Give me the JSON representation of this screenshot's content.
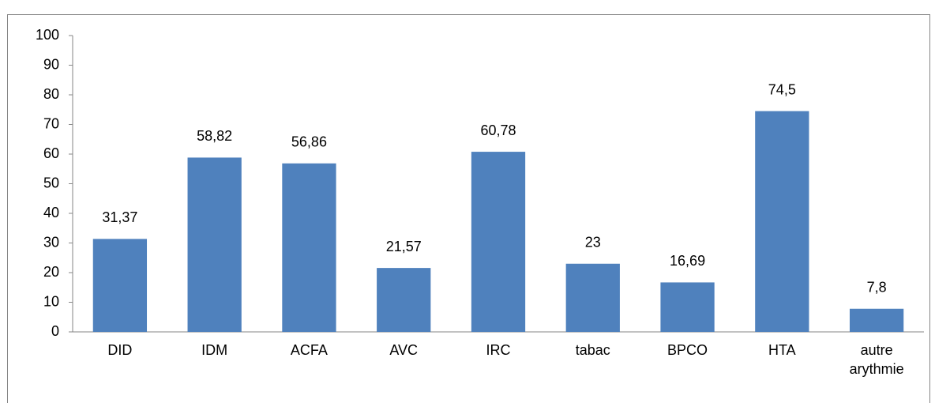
{
  "chart_data": {
    "type": "bar",
    "categories": [
      "DID",
      "IDM",
      "ACFA",
      "AVC",
      "IRC",
      "tabac",
      "BPCO",
      "HTA",
      "autre arythmie"
    ],
    "values": [
      31.37,
      58.82,
      56.86,
      21.57,
      60.78,
      23,
      16.69,
      74.5,
      7.8
    ],
    "value_labels": [
      "31,37",
      "58,82",
      "56,86",
      "21,57",
      "60,78",
      "23",
      "16,69",
      "74,5",
      "7,8"
    ],
    "color": "#4f81bd",
    "ylim": [
      0,
      100
    ],
    "yticks": [
      0,
      10,
      20,
      30,
      40,
      50,
      60,
      70,
      80,
      90,
      100
    ],
    "grid": false
  }
}
